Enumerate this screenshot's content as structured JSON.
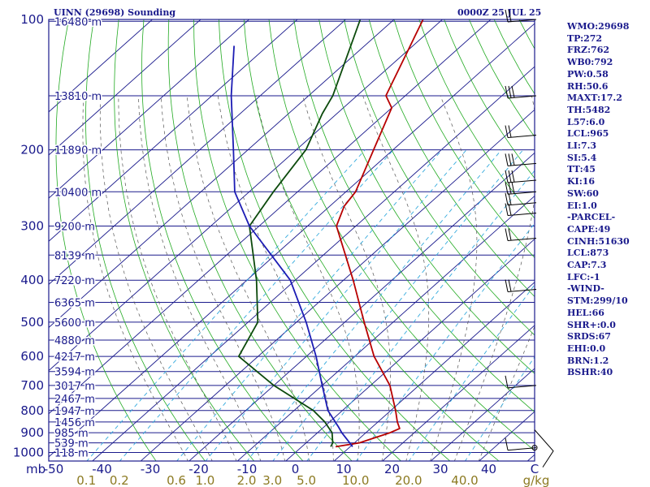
{
  "header": {
    "title": "UINN (29698) Sounding",
    "date": "0000Z 25 JUL 25"
  },
  "indices": [
    "WMO:29698",
    "TP:272",
    "FRZ:762",
    "WB0:792",
    "PW:0.58",
    "RH:50.6",
    "MAXT:17.2",
    "TH:5482",
    "L57:6.0",
    "LCL:965",
    "LI:7.3",
    "SI:5.4",
    "TT:45",
    "KI:16",
    "SW:60",
    "EI:1.0",
    "-PARCEL-",
    "CAPE:49",
    "CINH:51630",
    "LCL:873",
    "CAP:7.3",
    "LFC:-1",
    "-WIND-",
    "STM:299/10",
    "HEL:66",
    "SHR+:0.0",
    "SRDS:67",
    "EHI:0.0",
    "BRN:1.2",
    "BSHR:40"
  ],
  "colors": {
    "frame": "#1a1a8c",
    "isobar": "#1a1a8c",
    "isotherm": "#1a1a8c",
    "dry_adiabat": "#22aa22",
    "moist_adiabat": "#555555",
    "mixing_ratio": "#33aadd",
    "temperature": "#b80000",
    "dewpoint": "#0c4a0c",
    "parcel": "#1c1cb4",
    "wind": "#000000",
    "axis_text": "#1a1a8c",
    "mixing_text": "#8c7a22"
  },
  "chart_data": {
    "type": "line",
    "diagram": "skew-t",
    "pressure_levels": [
      100,
      200,
      300,
      400,
      500,
      600,
      700,
      800,
      900,
      1000
    ],
    "pressure_tick_labels": [
      "100",
      "200",
      "300",
      "400",
      "500",
      "600",
      "700",
      "800",
      "900",
      "1000"
    ],
    "pressure_range": [
      100,
      1050
    ],
    "temperature_range": [
      -50,
      50
    ],
    "temperature_ticks": [
      -50,
      -40,
      -30,
      -20,
      -10,
      0,
      10,
      20,
      30,
      40
    ],
    "temperature_tick_labels": [
      "-50",
      "-40",
      "-30",
      "-20",
      "-10",
      "0",
      "10",
      "20",
      "30",
      "40"
    ],
    "temperature_unit": "C",
    "pressure_unit": "mb",
    "mixing_ratio_values": [
      0.1,
      0.2,
      0.6,
      1.0,
      2.0,
      3.0,
      5.0,
      10.0,
      20.0,
      40.0
    ],
    "mixing_ratio_labels": [
      "0.1",
      "0.2",
      "0.6",
      "1.0",
      "2.0",
      "3.0",
      "5.0",
      "10.0",
      "20.0",
      "40.0"
    ],
    "mixing_ratio_unit": "g/kg",
    "height_labels": [
      {
        "p": 101,
        "label": "16480 m"
      },
      {
        "p": 150,
        "label": "13810 m"
      },
      {
        "p": 200,
        "label": "11890 m"
      },
      {
        "p": 250,
        "label": "10400 m"
      },
      {
        "p": 300,
        "label": "9200 m"
      },
      {
        "p": 350,
        "label": "8139 m"
      },
      {
        "p": 400,
        "label": "7220 m"
      },
      {
        "p": 450,
        "label": "6365 m"
      },
      {
        "p": 500,
        "label": "5600 m"
      },
      {
        "p": 550,
        "label": "4880 m"
      },
      {
        "p": 600,
        "label": "4217 m"
      },
      {
        "p": 650,
        "label": "3594 m"
      },
      {
        "p": 700,
        "label": "3017 m"
      },
      {
        "p": 750,
        "label": "2467 m"
      },
      {
        "p": 800,
        "label": "1947 m"
      },
      {
        "p": 850,
        "label": "1456 m"
      },
      {
        "p": 900,
        "label": "985 m"
      },
      {
        "p": 950,
        "label": "539 m"
      },
      {
        "p": 1000,
        "label": "118 m"
      }
    ],
    "series": [
      {
        "key": "temperature",
        "values": [
          {
            "p": 970,
            "t": 7
          },
          {
            "p": 950,
            "t": 11
          },
          {
            "p": 925,
            "t": 13
          },
          {
            "p": 900,
            "t": 15
          },
          {
            "p": 880,
            "t": 16
          },
          {
            "p": 850,
            "t": 14
          },
          {
            "p": 800,
            "t": 11
          },
          {
            "p": 700,
            "t": 4
          },
          {
            "p": 600,
            "t": -6
          },
          {
            "p": 500,
            "t": -16
          },
          {
            "p": 400,
            "t": -28
          },
          {
            "p": 300,
            "t": -44
          },
          {
            "p": 270,
            "t": -47
          },
          {
            "p": 250,
            "t": -48
          },
          {
            "p": 200,
            "t": -54
          },
          {
            "p": 160,
            "t": -60
          },
          {
            "p": 150,
            "t": -64
          },
          {
            "p": 100,
            "t": -74
          }
        ]
      },
      {
        "key": "dewpoint",
        "values": [
          {
            "p": 970,
            "t": 6
          },
          {
            "p": 950,
            "t": 5.5
          },
          {
            "p": 900,
            "t": 3
          },
          {
            "p": 850,
            "t": -1
          },
          {
            "p": 800,
            "t": -6
          },
          {
            "p": 700,
            "t": -20
          },
          {
            "p": 600,
            "t": -34
          },
          {
            "p": 500,
            "t": -38
          },
          {
            "p": 400,
            "t": -48
          },
          {
            "p": 300,
            "t": -62
          },
          {
            "p": 250,
            "t": -65
          },
          {
            "p": 200,
            "t": -68
          },
          {
            "p": 165,
            "t": -73
          },
          {
            "p": 150,
            "t": -75
          },
          {
            "p": 100,
            "t": -87
          }
        ]
      },
      {
        "key": "parcel",
        "values": [
          {
            "p": 970,
            "t": 10.5
          },
          {
            "p": 950,
            "t": 9
          },
          {
            "p": 900,
            "t": 5
          },
          {
            "p": 873,
            "t": 3
          },
          {
            "p": 800,
            "t": -3
          },
          {
            "p": 700,
            "t": -10
          },
          {
            "p": 600,
            "t": -18
          },
          {
            "p": 500,
            "t": -28
          },
          {
            "p": 400,
            "t": -41
          },
          {
            "p": 300,
            "t": -62
          },
          {
            "p": 250,
            "t": -73
          },
          {
            "p": 200,
            "t": -83
          },
          {
            "p": 150,
            "t": -96
          },
          {
            "p": 115,
            "t": -107
          }
        ]
      }
    ],
    "wind_barbs": [
      {
        "p": 100,
        "barbs": 2
      },
      {
        "p": 150,
        "barbs": 3
      },
      {
        "p": 185,
        "barbs": 2
      },
      {
        "p": 215,
        "barbs": 3
      },
      {
        "p": 235,
        "barbs": 3
      },
      {
        "p": 250,
        "barbs": 3
      },
      {
        "p": 265,
        "barbs": 2
      },
      {
        "p": 280,
        "barbs": 2
      },
      {
        "p": 320,
        "barbs": 2
      },
      {
        "p": 420,
        "barbs": 2
      },
      {
        "p": 700,
        "barbs": 1
      },
      {
        "p": 975,
        "barbs": 1
      }
    ],
    "grid": true
  }
}
